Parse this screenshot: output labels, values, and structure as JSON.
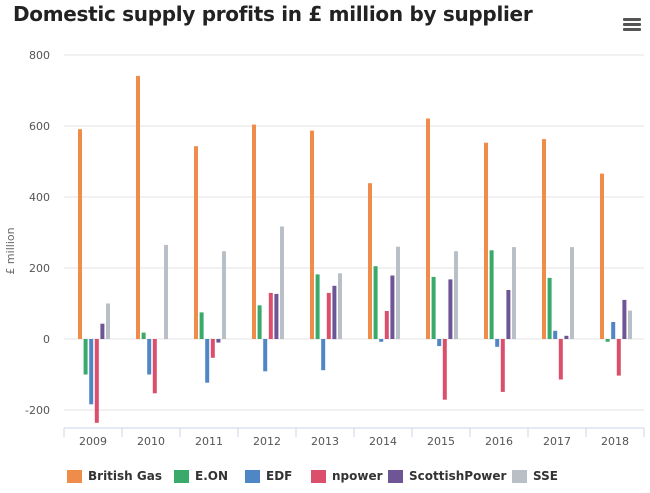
{
  "chart_data": {
    "type": "bar",
    "title": "Domestic supply profits in £ million by supplier",
    "xlabel": "",
    "ylabel": "£ million",
    "ylim": [
      -230,
      800
    ],
    "yticks": [
      -200,
      0,
      200,
      400,
      600,
      800
    ],
    "grid": true,
    "legend_position": "bottom-left",
    "categories": [
      "2009",
      "2010",
      "2011",
      "2012",
      "2013",
      "2014",
      "2015",
      "2016",
      "2017",
      "2018"
    ],
    "series": [
      {
        "name": "British Gas",
        "color": "#f08c4a",
        "values": [
          591,
          741,
          543,
          604,
          587,
          439,
          621,
          553,
          563,
          466
        ]
      },
      {
        "name": "E.ON",
        "color": "#3aaa6a",
        "values": [
          -100,
          18,
          75,
          95,
          182,
          205,
          175,
          250,
          172,
          -8
        ]
      },
      {
        "name": "EDF",
        "color": "#4f86c6",
        "values": [
          -184,
          -100,
          -123,
          -91,
          -88,
          -8,
          -20,
          -22,
          23,
          48
        ]
      },
      {
        "name": "npower",
        "color": "#dc4f6c",
        "values": [
          -236,
          -153,
          -53,
          130,
          130,
          79,
          -171,
          -149,
          -114,
          -103
        ]
      },
      {
        "name": "ScottishPower",
        "color": "#6e5596",
        "values": [
          43,
          0,
          -10,
          127,
          150,
          179,
          168,
          138,
          9,
          110
        ]
      },
      {
        "name": "SSE",
        "color": "#b8bfc6",
        "values": [
          100,
          265,
          247,
          317,
          185,
          260,
          247,
          259,
          259,
          80
        ]
      }
    ]
  },
  "ui": {
    "menu_icon": "hamburger-menu-icon"
  }
}
